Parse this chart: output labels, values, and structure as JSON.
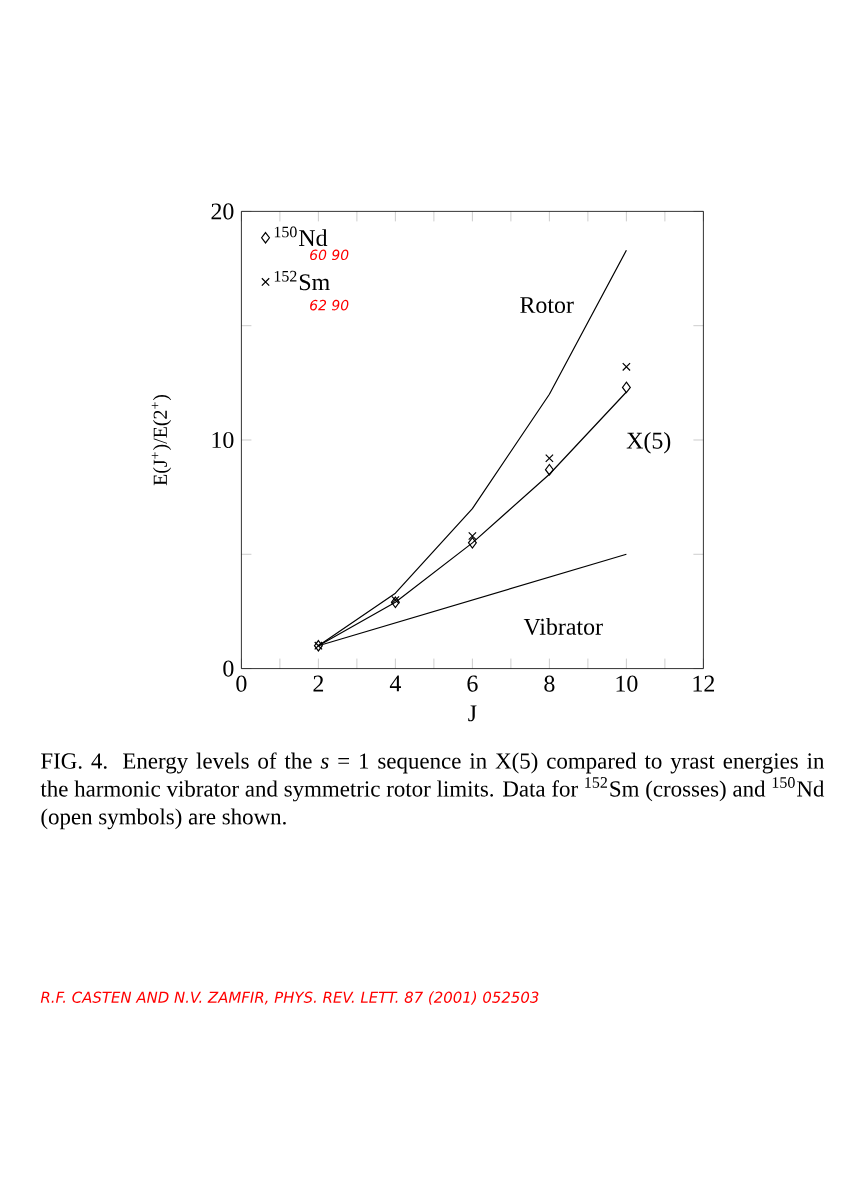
{
  "chart_data": {
    "type": "line",
    "xlabel": "J",
    "ylabel": "E(J$^{+}$)/E(2$^{+}$)",
    "x": [
      2,
      4,
      6,
      8,
      10
    ],
    "series": [
      {
        "name": "Rotor",
        "color": "#000000",
        "marker": "none",
        "values": [
          1,
          3.3,
          7,
          12,
          18.3
        ]
      },
      {
        "name": "X(5)",
        "color": "#000000",
        "marker": "none",
        "values": [
          1,
          2.9,
          5.5,
          8.5,
          12.1
        ]
      },
      {
        "name": "Vibrator",
        "color": "#000000",
        "marker": "none",
        "values": [
          1,
          2,
          3,
          4,
          5
        ]
      },
      {
        "name": "$^{150}$Nd",
        "type": "scatter",
        "color": "#000000",
        "marker": "diamond",
        "values": [
          1,
          2.9,
          5.5,
          8.7,
          12.3
        ]
      },
      {
        "name": "$^{152}$Sm",
        "type": "scatter",
        "color": "#000000",
        "marker": "cross",
        "values": [
          1,
          3,
          5.8,
          9.2,
          13.2
        ]
      }
    ],
    "xlim": [
      0,
      12
    ],
    "ylim": [
      0,
      20
    ],
    "xticks": [
      0,
      {
        "value": 1,
        "label": null
      },
      2,
      {
        "value": 3,
        "label": null
      },
      4,
      {
        "value": 5,
        "label": null
      },
      6,
      {
        "value": 7,
        "label": null
      },
      8,
      {
        "value": 9,
        "label": null
      },
      10,
      {
        "value": 11,
        "label": null
      },
      12
    ],
    "yticks": [
      0,
      {
        "value": 5,
        "label": null
      },
      10,
      {
        "value": 15,
        "label": null
      },
      20
    ],
    "legend": "top left",
    "annotations": [
      "60 90",
      "62 90",
      "FIG. 4.  Energy levels of the *s* = 1 sequence in X(5) compared to yrast energies in the harmonic vibrator and symmetric rotor limits. Data for $^{152}$Sm (crosses) and $^{150}$Nd (open symbols) are shown.",
      "R.F. CASTEN AND N.V. ZAMFIR, PHYS. REV. LETT. 87 (2001) 052503"
    ]
  }
}
